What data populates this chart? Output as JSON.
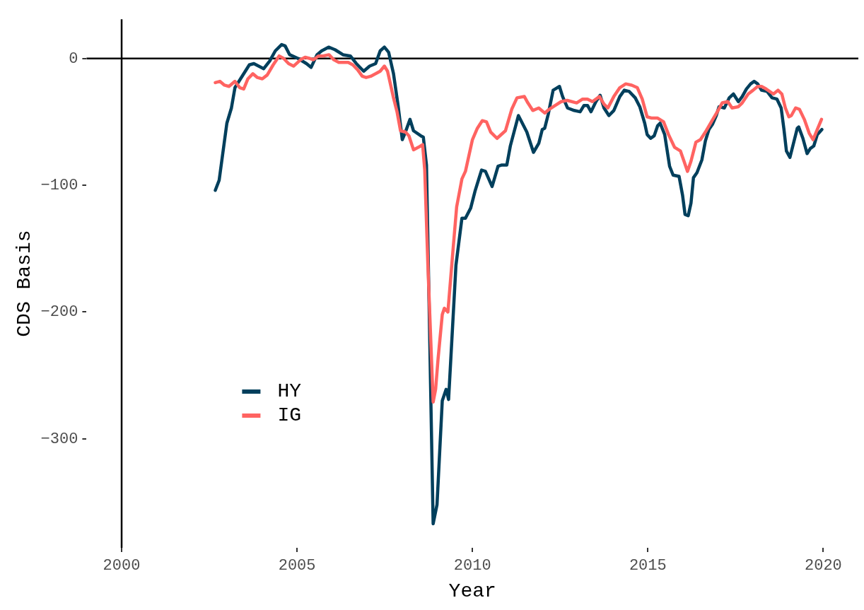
{
  "chart_data": {
    "type": "line",
    "xlabel": "Year",
    "ylabel": "CDS Basis",
    "xlim": [
      1999,
      2021
    ],
    "xticks": [
      2000,
      2005,
      2010,
      2015,
      2020
    ],
    "ylim": [
      -386,
      31
    ],
    "yticks": [
      -300,
      -200,
      -100,
      0
    ],
    "grid": false,
    "legend": "bottom left",
    "line_style": "solid",
    "ref_lines": [
      {
        "axis": "x",
        "value": 2000,
        "color": "#000000"
      },
      {
        "axis": "y",
        "value": 0,
        "color": "#000000"
      }
    ],
    "series": [
      {
        "name": "HY",
        "color": "#003f5c",
        "x": [
          2002.67,
          2002.78,
          2003.0,
          2003.13,
          2003.23,
          2003.64,
          2003.77,
          2004.05,
          2004.22,
          2004.38,
          2004.56,
          2004.66,
          2004.79,
          2005.03,
          2005.27,
          2005.4,
          2005.57,
          2005.7,
          2005.9,
          2006.08,
          2006.31,
          2006.52,
          2006.69,
          2006.9,
          2007.07,
          2007.24,
          2007.37,
          2007.49,
          2007.61,
          2007.75,
          2007.88,
          2008.0,
          2008.09,
          2008.22,
          2008.32,
          2008.53,
          2008.6,
          2008.69,
          2008.88,
          2008.99,
          2009.14,
          2009.25,
          2009.32,
          2009.53,
          2009.7,
          2009.8,
          2009.95,
          2010.08,
          2010.26,
          2010.37,
          2010.56,
          2010.73,
          2010.84,
          2010.98,
          2011.08,
          2011.31,
          2011.55,
          2011.74,
          2011.89,
          2011.99,
          2012.06,
          2012.16,
          2012.3,
          2012.36,
          2012.48,
          2012.57,
          2012.71,
          2012.9,
          2013.07,
          2013.18,
          2013.28,
          2013.38,
          2013.52,
          2013.64,
          2013.75,
          2013.89,
          2014.03,
          2014.2,
          2014.33,
          2014.47,
          2014.64,
          2014.77,
          2014.91,
          2014.98,
          2015.08,
          2015.18,
          2015.28,
          2015.35,
          2015.48,
          2015.62,
          2015.72,
          2015.89,
          2015.99,
          2016.06,
          2016.15,
          2016.23,
          2016.3,
          2016.4,
          2016.54,
          2016.64,
          2016.74,
          2016.84,
          2016.95,
          2017.03,
          2017.18,
          2017.32,
          2017.44,
          2017.58,
          2017.69,
          2017.81,
          2017.93,
          2018.03,
          2018.13,
          2018.24,
          2018.4,
          2018.54,
          2018.68,
          2018.8,
          2018.88,
          2018.95,
          2019.05,
          2019.15,
          2019.26,
          2019.3,
          2019.42,
          2019.54,
          2019.63,
          2019.73,
          2019.83,
          2019.96
        ],
        "values": [
          -104,
          -96,
          -51,
          -39,
          -23,
          -5,
          -4,
          -8,
          -2,
          6,
          11,
          10,
          3,
          0,
          -4,
          -7,
          3,
          6,
          9,
          7,
          3,
          2,
          -4,
          -10,
          -6,
          -4,
          6,
          9,
          5,
          -12,
          -37,
          -64,
          -58,
          -48,
          -57,
          -61,
          -62,
          -84,
          -367,
          -352,
          -270,
          -261,
          -269,
          -163,
          -126,
          -126,
          -118,
          -104,
          -88,
          -89,
          -101,
          -85,
          -84,
          -84,
          -69,
          -45,
          -58,
          -74,
          -67,
          -56,
          -55,
          -44,
          -25,
          -24,
          -22,
          -30,
          -39,
          -41,
          -42,
          -37,
          -37,
          -42,
          -34,
          -29,
          -39,
          -45,
          -41,
          -30,
          -25,
          -26,
          -31,
          -38,
          -51,
          -60,
          -63,
          -61,
          -53,
          -51,
          -60,
          -85,
          -92,
          -93,
          -108,
          -123,
          -124,
          -114,
          -94,
          -90,
          -80,
          -65,
          -56,
          -52,
          -45,
          -38,
          -39,
          -31,
          -28,
          -34,
          -30,
          -24,
          -20,
          -18,
          -20,
          -25,
          -26,
          -31,
          -32,
          -39,
          -56,
          -73,
          -78,
          -67,
          -55,
          -54,
          -63,
          -75,
          -71,
          -69,
          -60,
          -56
        ]
      },
      {
        "name": "IG",
        "color": "#ff6361",
        "x": [
          2002.67,
          2002.8,
          2002.93,
          2003.06,
          2003.23,
          2003.37,
          2003.48,
          2003.6,
          2003.74,
          2003.87,
          2004.01,
          2004.15,
          2004.32,
          2004.49,
          2004.62,
          2004.76,
          2004.9,
          2005.1,
          2005.23,
          2005.37,
          2005.47,
          2005.61,
          2005.74,
          2005.91,
          2006.05,
          2006.19,
          2006.32,
          2006.46,
          2006.59,
          2006.73,
          2006.86,
          2006.97,
          2007.1,
          2007.24,
          2007.37,
          2007.49,
          2007.58,
          2007.75,
          2007.85,
          2007.95,
          2008.09,
          2008.19,
          2008.32,
          2008.46,
          2008.58,
          2008.64,
          2008.73,
          2008.88,
          2008.95,
          2009.02,
          2009.14,
          2009.2,
          2009.3,
          2009.44,
          2009.55,
          2009.7,
          2009.8,
          2010.0,
          2010.14,
          2010.28,
          2010.4,
          2010.52,
          2010.7,
          2010.94,
          2011.12,
          2011.27,
          2011.48,
          2011.58,
          2011.72,
          2011.89,
          2012.06,
          2012.19,
          2012.36,
          2012.53,
          2012.7,
          2012.97,
          2013.14,
          2013.28,
          2013.42,
          2013.62,
          2013.75,
          2013.86,
          2014.03,
          2014.2,
          2014.37,
          2014.54,
          2014.7,
          2014.84,
          2014.98,
          2015.11,
          2015.28,
          2015.45,
          2015.59,
          2015.76,
          2015.93,
          2016.03,
          2016.13,
          2016.23,
          2016.37,
          2016.5,
          2016.64,
          2016.81,
          2016.98,
          2017.12,
          2017.28,
          2017.4,
          2017.58,
          2017.69,
          2017.86,
          2018.0,
          2018.13,
          2018.24,
          2018.37,
          2018.58,
          2018.71,
          2018.82,
          2018.92,
          2019.02,
          2019.09,
          2019.21,
          2019.32,
          2019.46,
          2019.6,
          2019.71,
          2019.83,
          2019.95
        ],
        "values": [
          -19,
          -18,
          -21,
          -22,
          -18,
          -23,
          -24,
          -16,
          -12,
          -15,
          -16,
          -13,
          -5,
          2,
          0,
          -4,
          -6,
          -1,
          1,
          0,
          -1,
          2,
          2,
          3,
          -1,
          -3,
          -3,
          -3,
          -5,
          -9,
          -14,
          -15,
          -14,
          -12,
          -10,
          -6,
          -10,
          -31,
          -42,
          -57,
          -58,
          -61,
          -72,
          -70,
          -68,
          -88,
          -163,
          -271,
          -261,
          -237,
          -202,
          -197,
          -200,
          -153,
          -117,
          -95,
          -89,
          -64,
          -55,
          -49,
          -50,
          -58,
          -63,
          -57,
          -40,
          -31,
          -30,
          -35,
          -41,
          -39,
          -43,
          -40,
          -37,
          -34,
          -33,
          -35,
          -32,
          -32,
          -34,
          -30,
          -36,
          -39,
          -30,
          -23,
          -20,
          -21,
          -23,
          -32,
          -46,
          -47,
          -47,
          -50,
          -60,
          -70,
          -73,
          -81,
          -89,
          -81,
          -66,
          -64,
          -58,
          -50,
          -42,
          -35,
          -34,
          -39,
          -38,
          -35,
          -28,
          -25,
          -22,
          -22,
          -24,
          -28,
          -25,
          -28,
          -39,
          -46,
          -45,
          -39,
          -40,
          -48,
          -59,
          -64,
          -56,
          -48
        ]
      }
    ]
  }
}
